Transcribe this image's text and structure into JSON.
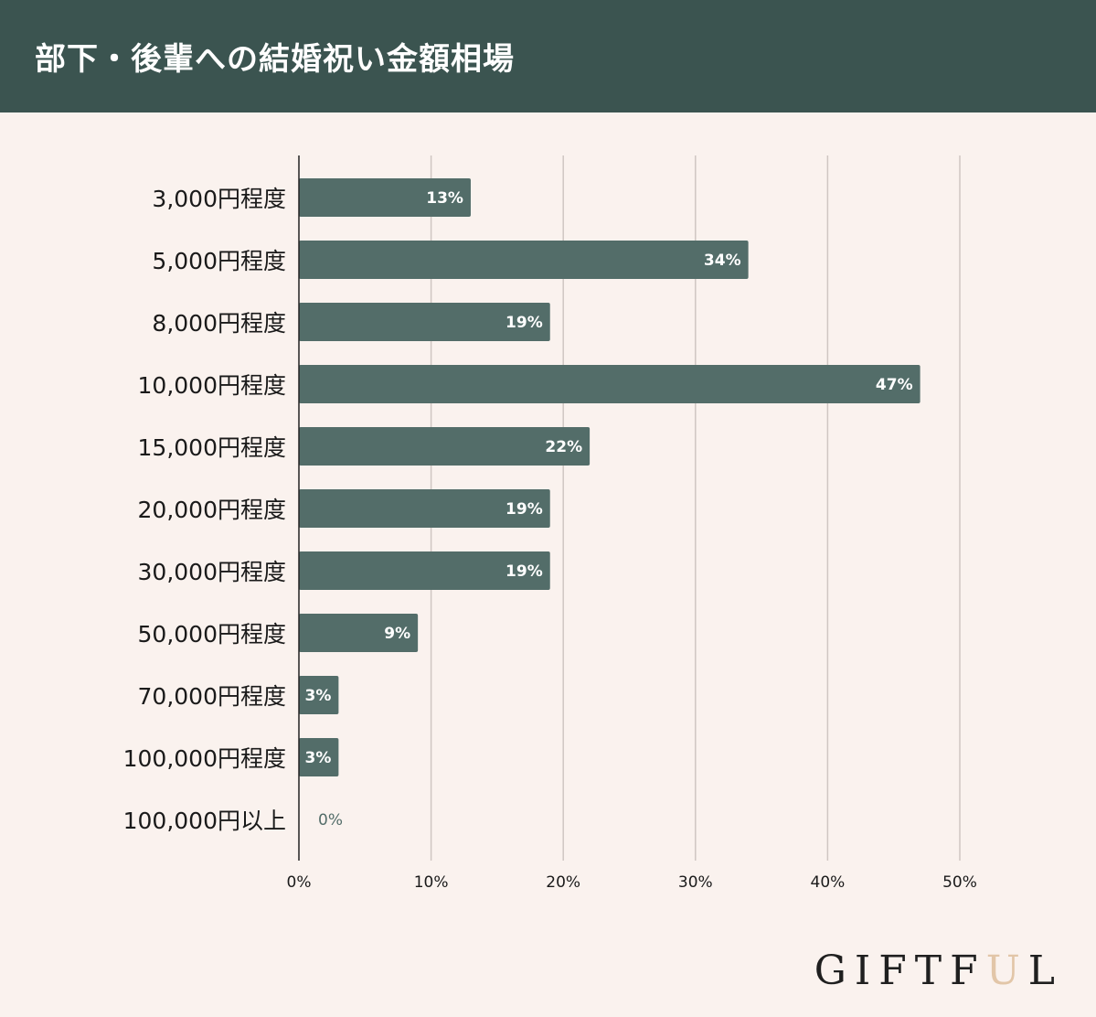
{
  "header": {
    "title": "部下・後輩への結婚祝い金額相場"
  },
  "logo": {
    "text_before": "GIFTF",
    "text_accent": "U",
    "text_after": "L"
  },
  "colors": {
    "header_bg": "#3b5450",
    "bar": "#536d69",
    "background": "#faf2ee",
    "gridline": "#cfc6c2",
    "logo_accent": "#e2c6a8"
  },
  "chart_data": {
    "type": "bar",
    "orientation": "horizontal",
    "title": "部下・後輩への結婚祝い金額相場",
    "categories": [
      "3,000円程度",
      "5,000円程度",
      "8,000円程度",
      "10,000円程度",
      "15,000円程度",
      "20,000円程度",
      "30,000円程度",
      "50,000円程度",
      "70,000円程度",
      "100,000円程度",
      "100,000円以上"
    ],
    "values": [
      13,
      34,
      19,
      47,
      22,
      19,
      19,
      9,
      3,
      3,
      0
    ],
    "data_labels": [
      "13%",
      "34%",
      "19%",
      "47%",
      "22%",
      "19%",
      "19%",
      "9%",
      "3%",
      "3%",
      "0%"
    ],
    "xlim": [
      0,
      50
    ],
    "xticks": [
      "0%",
      "10%",
      "20%",
      "30%",
      "40%",
      "50%"
    ],
    "xlabel": "",
    "ylabel": "",
    "grid": true,
    "legend": "none"
  }
}
